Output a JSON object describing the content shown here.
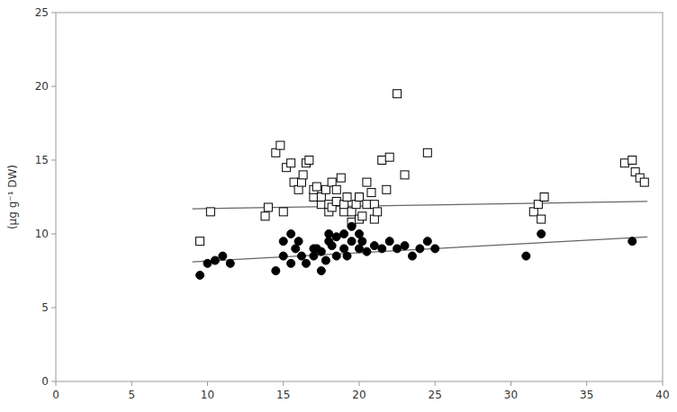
{
  "chart_data": {
    "type": "scatter",
    "ylabel": "(µg g⁻¹ DW)",
    "xlim": [
      0,
      40
    ],
    "ylim": [
      0,
      25
    ],
    "xticks": [
      0,
      5,
      10,
      15,
      20,
      25,
      30,
      35,
      40
    ],
    "yticks": [
      0,
      5,
      10,
      15,
      20,
      25
    ],
    "grid": false,
    "series": [
      {
        "type": "scatter",
        "marker": "square",
        "color": "#ffffff",
        "x": [
          9.5,
          10.2,
          13.8,
          14.0,
          14.5,
          14.8,
          15.0,
          15.2,
          15.5,
          15.7,
          16.0,
          16.2,
          16.3,
          16.5,
          16.7,
          17.0,
          17.0,
          17.2,
          17.5,
          17.5,
          17.8,
          18.0,
          18.0,
          18.2,
          18.2,
          18.5,
          18.5,
          18.8,
          19.0,
          19.0,
          19.2,
          19.5,
          19.5,
          19.8,
          20.0,
          20.0,
          20.2,
          20.5,
          20.5,
          20.8,
          21.0,
          21.0,
          21.2,
          21.5,
          21.8,
          22.0,
          22.5,
          23.0,
          24.5,
          31.5,
          31.8,
          32.0,
          32.2,
          37.5,
          38.0,
          38.2,
          38.5,
          38.8
        ],
        "values": [
          9.5,
          11.5,
          11.2,
          11.8,
          15.5,
          16.0,
          11.5,
          14.5,
          14.8,
          13.5,
          13.0,
          13.5,
          14.0,
          14.8,
          15.0,
          12.5,
          13.0,
          13.2,
          12.0,
          12.5,
          13.0,
          11.5,
          12.0,
          11.8,
          13.5,
          12.2,
          13.0,
          13.8,
          11.5,
          12.0,
          12.5,
          10.8,
          11.5,
          12.0,
          11.0,
          12.5,
          11.2,
          12.0,
          13.5,
          12.8,
          11.0,
          12.0,
          11.5,
          15.0,
          13.0,
          15.2,
          19.5,
          14.0,
          15.5,
          11.5,
          12.0,
          11.0,
          12.5,
          14.8,
          15.0,
          14.2,
          13.8,
          13.5
        ]
      },
      {
        "type": "scatter",
        "marker": "circle",
        "color": "#000000",
        "x": [
          9.5,
          10.0,
          10.5,
          11.0,
          11.5,
          14.5,
          15.0,
          15.0,
          15.5,
          15.5,
          15.8,
          16.0,
          16.2,
          16.5,
          17.0,
          17.0,
          17.2,
          17.5,
          17.5,
          17.8,
          18.0,
          18.0,
          18.2,
          18.5,
          18.5,
          19.0,
          19.0,
          19.2,
          19.5,
          19.5,
          20.0,
          20.0,
          20.2,
          20.5,
          21.0,
          21.5,
          22.0,
          22.5,
          23.0,
          23.5,
          24.0,
          24.5,
          25.0,
          31.0,
          32.0,
          38.0
        ],
        "values": [
          7.2,
          8.0,
          8.2,
          8.5,
          8.0,
          7.5,
          8.5,
          9.5,
          10.0,
          8.0,
          9.0,
          9.5,
          8.5,
          8.0,
          9.0,
          8.5,
          9.0,
          8.8,
          7.5,
          8.2,
          9.5,
          10.0,
          9.2,
          9.8,
          8.5,
          10.0,
          9.0,
          8.5,
          9.5,
          10.5,
          9.0,
          10.0,
          9.5,
          8.8,
          9.2,
          9.0,
          9.5,
          9.0,
          9.2,
          8.5,
          9.0,
          9.5,
          9.0,
          8.5,
          10.0,
          9.5
        ]
      },
      {
        "type": "line",
        "color": "#666666",
        "x": [
          9.0,
          39.0
        ],
        "values": [
          11.7,
          12.2
        ]
      },
      {
        "type": "line",
        "color": "#666666",
        "x": [
          9.0,
          39.0
        ],
        "values": [
          8.1,
          9.8
        ]
      }
    ]
  }
}
